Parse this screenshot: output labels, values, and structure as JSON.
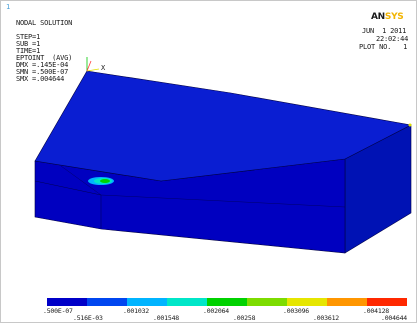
{
  "window_number": "1",
  "header_lines": [
    "NODAL SOLUTION",
    "STEP=1",
    "SUB =1",
    "TIME=1",
    "EPTOINT  (AVG)",
    "DMX =.145E-04",
    "SMN =.500E-07",
    "SMX =.004644"
  ],
  "logo": {
    "main": "AN",
    "accent": "SYS"
  },
  "date": "JUN  1 2011",
  "time": "22:02:44",
  "plot_label": "PLOT NO.   1",
  "axis_label": "X",
  "legend": {
    "colors": [
      "#0000c8",
      "#0046f0",
      "#00b4ff",
      "#00e6c8",
      "#00d200",
      "#7ddc00",
      "#e6e600",
      "#ff9600",
      "#ff2800"
    ],
    "top_labels": [
      ".500E-07",
      ".001032",
      ".002064",
      ".003096",
      ".004128"
    ],
    "bottom_labels": [
      ".516E-03",
      ".001548",
      ".00258",
      ".003612",
      ".004644"
    ]
  },
  "colors": {
    "model_top": "#0a1ed2",
    "model_front": "#0000c0",
    "model_side": "#0012b4",
    "edges": "#000046"
  }
}
